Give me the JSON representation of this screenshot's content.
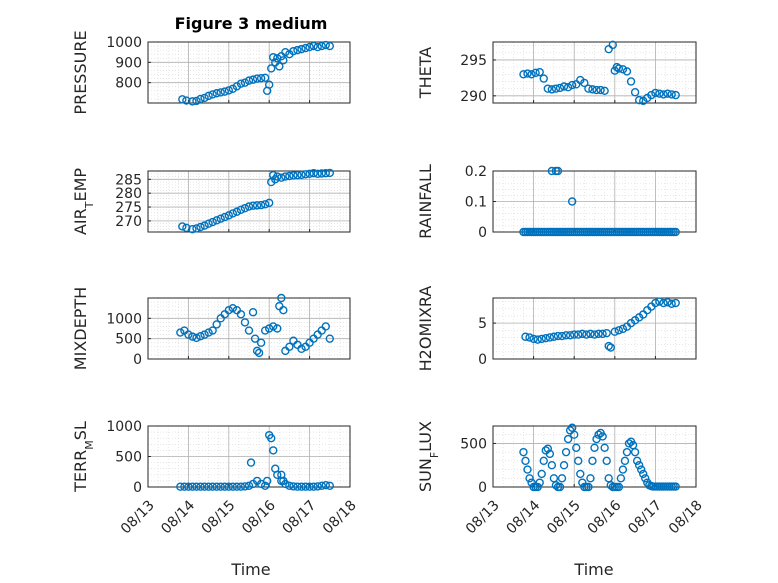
{
  "figure": {
    "title": "Figure 3 medium",
    "xlabel": "Time",
    "x_ticks": [
      "08/13",
      "08/14",
      "08/15",
      "08/16",
      "08/17",
      "08/18"
    ],
    "colors": {
      "marker": "#0072BD",
      "axis": "#262626",
      "grid": "#b0b0b0",
      "background": "#ffffff"
    }
  },
  "chart_data": [
    {
      "type": "scatter",
      "ylabel": "PRESSURE",
      "xlim": [
        0,
        5
      ],
      "ylim": [
        700,
        1000
      ],
      "yticks": [
        800,
        900,
        1000
      ],
      "x": [
        0.85,
        0.95,
        1.1,
        1.2,
        1.3,
        1.4,
        1.5,
        1.6,
        1.7,
        1.8,
        1.9,
        2.0,
        2.1,
        2.2,
        2.3,
        2.4,
        2.5,
        2.6,
        2.7,
        2.8,
        2.9,
        2.95,
        3.0,
        3.05,
        3.1,
        3.15,
        3.2,
        3.25,
        3.3,
        3.35,
        3.4,
        3.5,
        3.6,
        3.7,
        3.8,
        3.9,
        4.0,
        4.1,
        4.2,
        4.3,
        4.4,
        4.5
      ],
      "y": [
        718,
        712,
        708,
        710,
        720,
        725,
        735,
        742,
        748,
        752,
        756,
        762,
        770,
        782,
        795,
        800,
        810,
        815,
        820,
        822,
        824,
        760,
        790,
        870,
        925,
        900,
        920,
        880,
        930,
        910,
        950,
        940,
        955,
        960,
        965,
        970,
        975,
        980,
        975,
        980,
        985,
        980
      ]
    },
    {
      "type": "scatter",
      "ylabel": "THETA",
      "xlim": [
        0,
        5
      ],
      "ylim": [
        289,
        297.5
      ],
      "yticks": [
        290,
        295
      ],
      "x": [
        0.75,
        0.85,
        0.95,
        1.05,
        1.15,
        1.25,
        1.35,
        1.45,
        1.55,
        1.65,
        1.75,
        1.85,
        1.95,
        2.05,
        2.15,
        2.25,
        2.35,
        2.45,
        2.55,
        2.65,
        2.75,
        2.85,
        2.95,
        3.0,
        3.05,
        3.1,
        3.2,
        3.3,
        3.4,
        3.5,
        3.6,
        3.7,
        3.8,
        3.9,
        4.0,
        4.1,
        4.2,
        4.3,
        4.4,
        4.5
      ],
      "y": [
        293,
        293.1,
        293,
        293.2,
        293.3,
        292.4,
        291,
        290.9,
        291,
        291.1,
        291.3,
        291.2,
        291.5,
        291.6,
        292.2,
        291.8,
        291,
        290.9,
        290.8,
        290.8,
        290.7,
        296.5,
        297.1,
        293.5,
        294,
        293.8,
        293.7,
        293.4,
        292,
        290.5,
        289.4,
        289.3,
        289.7,
        290.1,
        290.4,
        290.3,
        290.2,
        290.3,
        290.2,
        290.1
      ]
    },
    {
      "type": "scatter",
      "ylabel": "AIR_TEMP",
      "xlim": [
        0,
        5
      ],
      "ylim": [
        266,
        288
      ],
      "yticks": [
        270,
        275,
        280,
        285
      ],
      "x": [
        0.85,
        0.95,
        1.1,
        1.2,
        1.3,
        1.4,
        1.5,
        1.6,
        1.7,
        1.8,
        1.9,
        2.0,
        2.1,
        2.2,
        2.3,
        2.4,
        2.5,
        2.6,
        2.7,
        2.8,
        2.9,
        3.0,
        3.05,
        3.1,
        3.15,
        3.2,
        3.3,
        3.4,
        3.5,
        3.6,
        3.7,
        3.8,
        3.9,
        4.0,
        4.1,
        4.2,
        4.3,
        4.4,
        4.5
      ],
      "y": [
        268,
        267.5,
        267,
        267.3,
        267.8,
        268.3,
        269,
        269.6,
        270.2,
        270.8,
        271.4,
        272,
        272.7,
        273.3,
        274,
        274.6,
        275.2,
        275.5,
        275.6,
        275.7,
        276,
        276.5,
        284,
        286.5,
        285,
        286,
        285.6,
        286,
        286.2,
        286.4,
        286.5,
        286.6,
        286.8,
        287,
        287.2,
        287,
        287.1,
        287.2,
        287.3
      ]
    },
    {
      "type": "scatter",
      "ylabel": "RAINFALL",
      "xlim": [
        0,
        5
      ],
      "ylim": [
        0,
        0.2
      ],
      "yticks": [
        0,
        0.1,
        0.2
      ],
      "x": [
        0.75,
        0.8,
        0.85,
        0.9,
        0.95,
        1.0,
        1.05,
        1.1,
        1.15,
        1.2,
        1.25,
        1.3,
        1.35,
        1.4,
        1.45,
        1.5,
        1.55,
        1.6,
        1.65,
        1.7,
        1.75,
        1.8,
        1.85,
        1.9,
        1.95,
        2.0,
        2.05,
        2.1,
        2.15,
        2.2,
        2.25,
        2.3,
        2.35,
        2.4,
        2.45,
        2.5,
        2.55,
        2.6,
        2.65,
        2.7,
        2.75,
        2.8,
        2.85,
        2.9,
        2.95,
        3.0,
        3.05,
        3.1,
        3.15,
        3.2,
        3.25,
        3.3,
        3.35,
        3.4,
        3.45,
        3.5,
        3.55,
        3.6,
        3.65,
        3.7,
        3.75,
        3.8,
        3.85,
        3.9,
        3.95,
        4.0,
        4.05,
        4.1,
        4.15,
        4.2,
        4.25,
        4.3,
        4.35,
        4.4,
        4.45,
        4.5,
        1.45,
        1.55,
        1.6,
        1.95
      ],
      "y": [
        0,
        0,
        0,
        0,
        0,
        0,
        0,
        0,
        0,
        0,
        0,
        0,
        0,
        0,
        0,
        0,
        0,
        0,
        0,
        0,
        0,
        0,
        0,
        0,
        0,
        0,
        0,
        0,
        0,
        0,
        0,
        0,
        0,
        0,
        0,
        0,
        0,
        0,
        0,
        0,
        0,
        0,
        0,
        0,
        0,
        0,
        0,
        0,
        0,
        0,
        0,
        0,
        0,
        0,
        0,
        0,
        0,
        0,
        0,
        0,
        0,
        0,
        0,
        0,
        0,
        0,
        0,
        0,
        0,
        0,
        0,
        0,
        0,
        0,
        0,
        0,
        0.2,
        0.2,
        0.2,
        0.1
      ]
    },
    {
      "type": "scatter",
      "ylabel": "MIXDEPTH",
      "xlim": [
        0,
        5
      ],
      "ylim": [
        0,
        1500
      ],
      "yticks": [
        0,
        500,
        1000
      ],
      "x": [
        0.8,
        0.9,
        1.0,
        1.1,
        1.2,
        1.3,
        1.4,
        1.5,
        1.6,
        1.7,
        1.8,
        1.9,
        2.0,
        2.1,
        2.2,
        2.3,
        2.4,
        2.5,
        2.6,
        2.65,
        2.7,
        2.75,
        2.8,
        2.9,
        3.0,
        3.1,
        3.2,
        3.25,
        3.3,
        3.35,
        3.4,
        3.5,
        3.6,
        3.7,
        3.8,
        3.9,
        4.0,
        4.1,
        4.2,
        4.3,
        4.4,
        4.5
      ],
      "y": [
        650,
        700,
        600,
        550,
        520,
        560,
        600,
        650,
        700,
        850,
        1000,
        1100,
        1200,
        1250,
        1200,
        1100,
        900,
        700,
        1150,
        500,
        200,
        150,
        400,
        700,
        750,
        800,
        750,
        1300,
        1500,
        1200,
        200,
        300,
        450,
        350,
        250,
        300,
        400,
        500,
        600,
        700,
        800,
        500
      ]
    },
    {
      "type": "scatter",
      "ylabel": "H2OMIXRA",
      "xlim": [
        0,
        5
      ],
      "ylim": [
        0,
        8.5
      ],
      "yticks": [
        0,
        5
      ],
      "x": [
        0.8,
        0.9,
        1.0,
        1.1,
        1.2,
        1.3,
        1.4,
        1.5,
        1.6,
        1.7,
        1.8,
        1.9,
        2.0,
        2.1,
        2.2,
        2.3,
        2.4,
        2.5,
        2.6,
        2.7,
        2.8,
        2.85,
        2.9,
        3.0,
        3.1,
        3.2,
        3.3,
        3.4,
        3.5,
        3.6,
        3.7,
        3.8,
        3.9,
        4.0,
        4.1,
        4.2,
        4.3,
        4.4,
        4.5
      ],
      "y": [
        3.1,
        3.0,
        2.8,
        2.7,
        2.8,
        2.9,
        3.0,
        3.1,
        3.2,
        3.2,
        3.3,
        3.3,
        3.4,
        3.4,
        3.5,
        3.4,
        3.5,
        3.4,
        3.5,
        3.5,
        3.6,
        1.8,
        1.6,
        3.8,
        4.0,
        4.2,
        4.5,
        5.0,
        5.4,
        5.8,
        6.2,
        6.8,
        7.3,
        7.8,
        8.0,
        7.8,
        7.9,
        7.7,
        7.8
      ]
    },
    {
      "type": "scatter",
      "ylabel": "TERR_MSL",
      "xlim": [
        0,
        5
      ],
      "ylim": [
        0,
        1000
      ],
      "yticks": [
        0,
        500,
        1000
      ],
      "x": [
        0.8,
        0.9,
        1.0,
        1.1,
        1.2,
        1.3,
        1.4,
        1.5,
        1.6,
        1.7,
        1.8,
        1.9,
        2.0,
        2.1,
        2.2,
        2.3,
        2.4,
        2.5,
        2.6,
        2.7,
        2.8,
        2.9,
        2.95,
        3.0,
        3.05,
        3.1,
        3.15,
        3.2,
        3.3,
        3.4,
        3.5,
        3.6,
        3.7,
        3.8,
        3.9,
        4.0,
        4.1,
        4.2,
        4.3,
        4.4,
        4.5,
        2.55,
        3.3,
        3.35
      ],
      "y": [
        5,
        5,
        5,
        5,
        5,
        5,
        5,
        5,
        5,
        5,
        5,
        5,
        5,
        5,
        5,
        5,
        10,
        20,
        50,
        100,
        50,
        20,
        100,
        850,
        800,
        600,
        300,
        200,
        100,
        50,
        20,
        10,
        5,
        5,
        5,
        5,
        5,
        10,
        20,
        30,
        20,
        400,
        200,
        100
      ]
    },
    {
      "type": "scatter",
      "ylabel": "SUN_FLUX",
      "xlim": [
        0,
        5
      ],
      "ylim": [
        0,
        700
      ],
      "yticks": [
        0,
        500
      ],
      "x": [
        0.75,
        0.8,
        0.85,
        0.9,
        0.95,
        1.0,
        1.05,
        1.1,
        1.15,
        1.2,
        1.25,
        1.3,
        1.35,
        1.4,
        1.45,
        1.5,
        1.55,
        1.6,
        1.65,
        1.7,
        1.75,
        1.8,
        1.85,
        1.9,
        1.95,
        2.0,
        2.05,
        2.1,
        2.15,
        2.2,
        2.25,
        2.3,
        2.35,
        2.4,
        2.45,
        2.5,
        2.55,
        2.6,
        2.65,
        2.7,
        2.75,
        2.8,
        2.85,
        2.9,
        2.95,
        3.0,
        3.05,
        3.1,
        3.15,
        3.2,
        3.25,
        3.3,
        3.35,
        3.4,
        3.45,
        3.5,
        3.55,
        3.6,
        3.65,
        3.7,
        3.75,
        3.8,
        3.85,
        3.9,
        3.95,
        4.0,
        4.05,
        4.1,
        4.15,
        4.2,
        4.25,
        4.3,
        4.35,
        4.4,
        4.45,
        4.5
      ],
      "y": [
        400,
        300,
        200,
        100,
        50,
        0,
        0,
        0,
        50,
        150,
        300,
        420,
        440,
        380,
        250,
        100,
        20,
        0,
        0,
        100,
        250,
        400,
        550,
        650,
        680,
        600,
        450,
        300,
        150,
        50,
        0,
        0,
        0,
        100,
        300,
        450,
        550,
        600,
        620,
        580,
        450,
        300,
        100,
        20,
        0,
        0,
        0,
        0,
        100,
        200,
        300,
        400,
        500,
        520,
        480,
        400,
        300,
        250,
        200,
        150,
        100,
        50,
        20,
        10,
        5,
        5,
        5,
        5,
        5,
        5,
        5,
        5,
        5,
        5,
        5,
        5
      ]
    }
  ]
}
